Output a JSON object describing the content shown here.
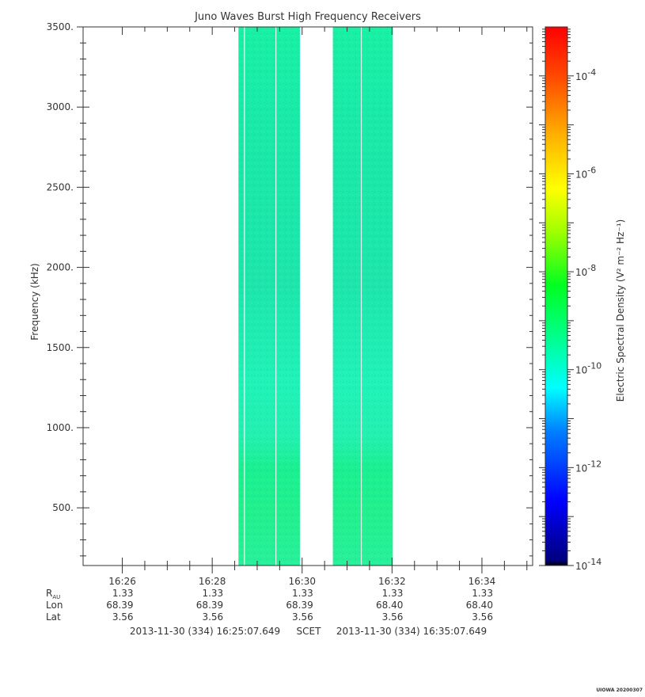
{
  "chart_data": {
    "type": "heatmap",
    "title": "Juno Waves Burst High Frequency Receivers",
    "ylabel": "Frequency (kHz)",
    "ylim": [
      140,
      3500
    ],
    "y_ticks": [
      {
        "value": 500,
        "label": "500."
      },
      {
        "value": 1000,
        "label": "1000."
      },
      {
        "value": 1500,
        "label": "1500."
      },
      {
        "value": 2000,
        "label": "2000."
      },
      {
        "value": 2500,
        "label": "2500."
      },
      {
        "value": 3000,
        "label": "3000."
      },
      {
        "value": 3500,
        "label": "3500."
      }
    ],
    "x_range": [
      "16:25:07.649",
      "16:35:07.649"
    ],
    "x_ticks": [
      "16:26",
      "16:28",
      "16:30",
      "16:32",
      "16:34"
    ],
    "data_intervals": [
      {
        "start": "16:28:35",
        "end": "16:29:57"
      },
      {
        "start": "16:30:41",
        "end": "16:32:01"
      }
    ],
    "gaps": [
      "16:28:43",
      "16:29:25",
      "16:31:19"
    ],
    "colorbar": {
      "label": "Electric Spectral Density (V² m⁻² Hz⁻¹)",
      "scale": "log",
      "range_log10": [
        -14,
        -3
      ],
      "ticks": [
        {
          "exp": -4,
          "base": "10",
          "sup": "-4"
        },
        {
          "exp": -6,
          "base": "10",
          "sup": "-6"
        },
        {
          "exp": -8,
          "base": "10",
          "sup": "-8"
        },
        {
          "exp": -10,
          "base": "10",
          "sup": "-10"
        },
        {
          "exp": -12,
          "base": "10",
          "sup": "-12"
        },
        {
          "exp": -14,
          "base": "10",
          "sup": "-14"
        }
      ]
    },
    "ephemeris": {
      "rows": [
        {
          "label": "R",
          "sub": "AU",
          "values": [
            "1.33",
            "1.33",
            "1.33",
            "1.33",
            "1.33"
          ]
        },
        {
          "label": "Lon",
          "sub": "",
          "values": [
            "68.39",
            "68.39",
            "68.39",
            "68.40",
            "68.40"
          ]
        },
        {
          "label": "Lat",
          "sub": "",
          "values": [
            "3.56",
            "3.56",
            "3.56",
            "3.56",
            "3.56"
          ]
        }
      ]
    },
    "time_range_text": {
      "start": "2013-11-30 (334) 16:25:07.649",
      "middle": "SCET",
      "end": "2013-11-30 (334) 16:35:07.649"
    }
  },
  "footer": {
    "stamp": "UIOWA 20200307"
  }
}
